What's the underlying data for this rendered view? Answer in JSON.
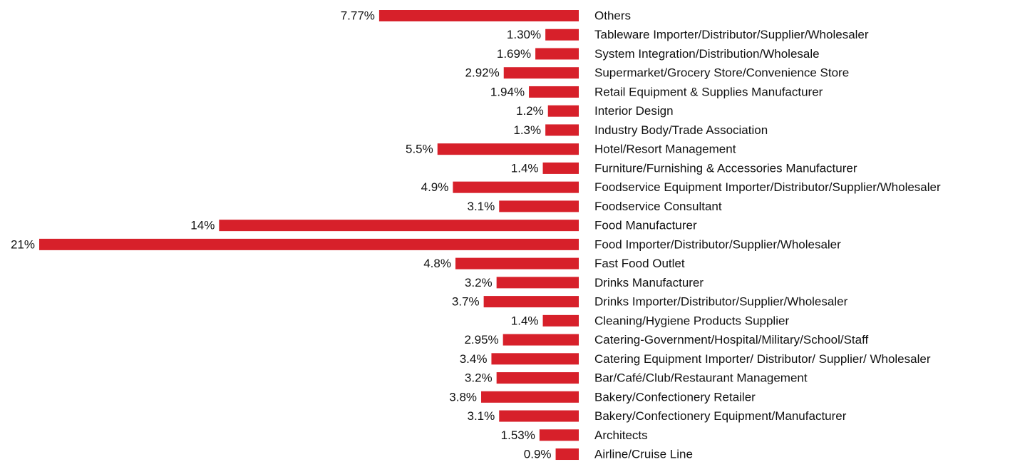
{
  "chart_data": {
    "type": "barh",
    "color": "#d7202a",
    "categories": [
      "Others",
      "Tableware Importer/Distributor/Supplier/Wholesaler",
      "System Integration/Distribution/Wholesale",
      "Supermarket/Grocery Store/Convenience Store",
      "Retail Equipment & Supplies Manufacturer",
      "Interior Design",
      "Industry Body/Trade Association",
      "Hotel/Resort Management",
      "Furniture/Furnishing & Accessories Manufacturer",
      "Foodservice Equipment Importer/Distributor/Supplier/Wholesaler",
      "Foodservice Consultant",
      "Food Manufacturer",
      "Food Importer/Distributor/Supplier/Wholesaler",
      "Fast Food Outlet",
      "Drinks Manufacturer",
      "Drinks Importer/Distributor/Supplier/Wholesaler",
      "Cleaning/Hygiene Products Supplier",
      "Catering-Government/Hospital/Military/School/Staff",
      "Catering Equipment Importer/ Distributor/ Supplier/ Wholesaler",
      "Bar/Café/Club/Restaurant Management",
      "Bakery/Confectionery Retailer",
      "Bakery/Confectionery Equipment/Manufacturer",
      "Architects",
      "Airline/Cruise Line"
    ],
    "values": [
      7.77,
      1.3,
      1.69,
      2.92,
      1.94,
      1.2,
      1.3,
      5.5,
      1.4,
      4.9,
      3.1,
      14,
      21,
      4.8,
      3.2,
      3.7,
      1.4,
      2.95,
      3.4,
      3.2,
      3.8,
      3.1,
      1.53,
      0.9
    ],
    "value_labels": [
      "7.77%",
      "1.30%",
      "1.69%",
      "2.92%",
      "1.94%",
      "1.2%",
      "1.3%",
      "5.5%",
      "1.4%",
      "4.9%",
      "3.1%",
      "14%",
      "21%",
      "4.8%",
      "3.2%",
      "3.7%",
      "1.4%",
      "2.95%",
      "3.4%",
      "3.2%",
      "3.8%",
      "3.1%",
      "1.53%",
      "0.9%"
    ]
  }
}
